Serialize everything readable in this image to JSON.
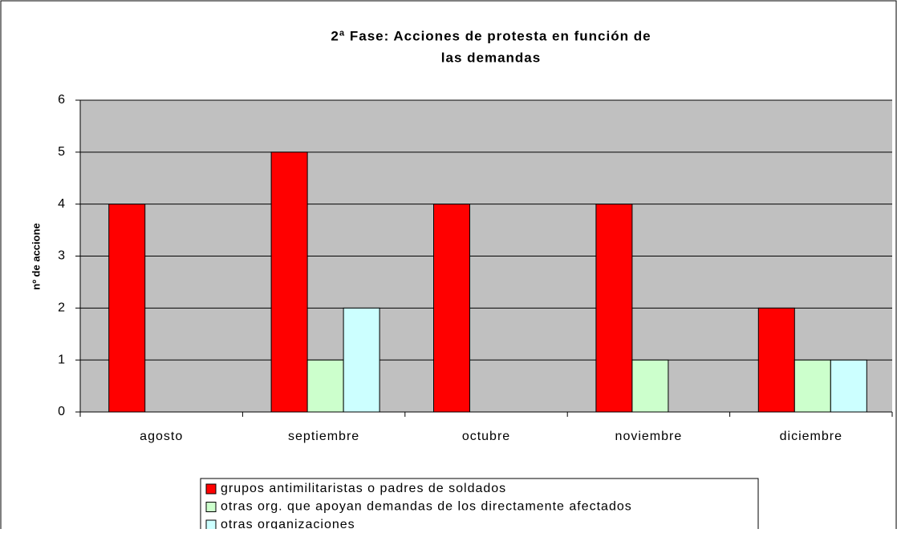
{
  "chart_data": {
    "type": "bar",
    "title": [
      "2ª Fase: Acciones de protesta en función de",
      "las demandas"
    ],
    "ylabel": "nº de accione",
    "categories": [
      "agosto",
      "septiembre",
      "octubre",
      "noviembre",
      "diciembre"
    ],
    "series": [
      {
        "name": "grupos antimilitaristas o padres de soldados",
        "color": "#ff0000",
        "values": [
          4,
          5,
          4,
          4,
          2
        ]
      },
      {
        "name": "otras org. que apoyan demandas de los directamente afectados",
        "color": "#ccffcc",
        "values": [
          0,
          1,
          0,
          1,
          1
        ]
      },
      {
        "name": "otras organizaciones",
        "color": "#ccffff",
        "values": [
          0,
          2,
          0,
          0,
          1
        ]
      }
    ],
    "ylim": [
      0,
      6
    ],
    "yticks": [
      0,
      1,
      2,
      3,
      4,
      5,
      6
    ],
    "grid": true,
    "legend": "bottom"
  }
}
